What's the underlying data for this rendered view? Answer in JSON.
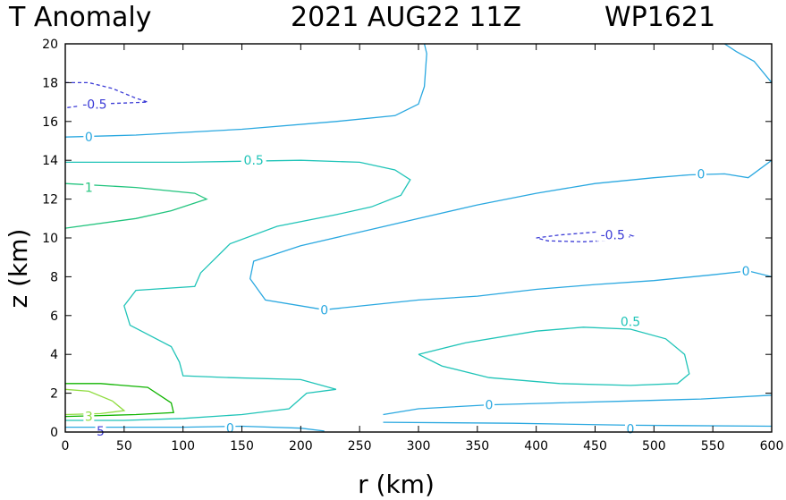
{
  "title": {
    "left": "T Anomaly",
    "center": "2021 AUG22 11Z",
    "right": "WP1621"
  },
  "colors": {
    "neg": "#3b3bd6",
    "zero": "#2aa8e0",
    "half": "#20c4b8",
    "one": "#22c47e",
    "two": "#10b400",
    "three": "#90dc40"
  },
  "chart_data": {
    "type": "contour",
    "title": "T Anomaly  2021 AUG22 11Z  WP1621",
    "xlabel": "r (km)",
    "ylabel": "z (km)",
    "xlim": [
      0,
      600
    ],
    "ylim": [
      0,
      20
    ],
    "xticks": [
      0,
      50,
      100,
      150,
      200,
      250,
      300,
      350,
      400,
      450,
      500,
      550,
      600
    ],
    "yticks": [
      0,
      2,
      4,
      6,
      8,
      10,
      12,
      14,
      16,
      18,
      20
    ],
    "contours": [
      {
        "level": -0.5,
        "color": "neg",
        "dashed": true,
        "points": [
          [
            0,
            18.0
          ],
          [
            20,
            18.0
          ],
          [
            40,
            17.7
          ],
          [
            60,
            17.2
          ],
          [
            70,
            17.0
          ],
          [
            50,
            16.95
          ],
          [
            25,
            16.9
          ],
          [
            0,
            16.7
          ]
        ]
      },
      {
        "level": 0,
        "color": "zero",
        "dashed": false,
        "points": [
          [
            0,
            15.2
          ],
          [
            60,
            15.3
          ],
          [
            150,
            15.6
          ],
          [
            230,
            16.0
          ],
          [
            280,
            16.3
          ],
          [
            300,
            16.9
          ],
          [
            305,
            17.8
          ],
          [
            307,
            19.5
          ],
          [
            305,
            20.0
          ]
        ]
      },
      {
        "level": 0.5,
        "color": "half",
        "dashed": false,
        "points": [
          [
            0,
            13.9
          ],
          [
            100,
            13.9
          ],
          [
            200,
            14.0
          ],
          [
            250,
            13.9
          ],
          [
            280,
            13.5
          ],
          [
            293,
            13.0
          ],
          [
            285,
            12.2
          ],
          [
            260,
            11.6
          ],
          [
            230,
            11.2
          ],
          [
            180,
            10.6
          ],
          [
            140,
            9.7
          ],
          [
            115,
            8.2
          ],
          [
            110,
            7.5
          ],
          [
            60,
            7.3
          ],
          [
            50,
            6.5
          ],
          [
            55,
            5.5
          ],
          [
            90,
            4.4
          ],
          [
            97,
            3.6
          ],
          [
            100,
            2.9
          ],
          [
            140,
            2.8
          ],
          [
            200,
            2.7
          ],
          [
            230,
            2.2
          ],
          [
            205,
            2.0
          ],
          [
            190,
            1.2
          ],
          [
            150,
            0.9
          ],
          [
            100,
            0.7
          ],
          [
            50,
            0.6
          ],
          [
            0,
            0.6
          ]
        ]
      },
      {
        "level": 1,
        "color": "one",
        "dashed": false,
        "points": [
          [
            0,
            12.8
          ],
          [
            60,
            12.6
          ],
          [
            110,
            12.3
          ],
          [
            120,
            12.0
          ],
          [
            90,
            11.4
          ],
          [
            60,
            11.0
          ],
          [
            0,
            10.5
          ]
        ]
      },
      {
        "level": -0.5,
        "color": "neg",
        "dashed": true,
        "points": [
          [
            400,
            10.0
          ],
          [
            420,
            10.15
          ],
          [
            450,
            10.3
          ],
          [
            475,
            10.25
          ],
          [
            482,
            10.1
          ],
          [
            470,
            9.9
          ],
          [
            440,
            9.8
          ],
          [
            410,
            9.85
          ],
          [
            400,
            10.0
          ]
        ]
      },
      {
        "level": 0,
        "color": "zero",
        "dashed": false,
        "points": [
          [
            220,
            6.3
          ],
          [
            300,
            6.8
          ],
          [
            350,
            7.0
          ],
          [
            400,
            7.35
          ],
          [
            450,
            7.6
          ],
          [
            500,
            7.8
          ],
          [
            550,
            8.1
          ],
          [
            580,
            8.3
          ],
          [
            600,
            8.0
          ]
        ]
      },
      {
        "level": 0,
        "color": "zero",
        "dashed": false,
        "points": [
          [
            220,
            6.3
          ],
          [
            170,
            6.8
          ],
          [
            157,
            7.9
          ],
          [
            160,
            8.8
          ],
          [
            200,
            9.6
          ],
          [
            250,
            10.3
          ],
          [
            300,
            11.0
          ],
          [
            350,
            11.7
          ],
          [
            400,
            12.3
          ],
          [
            450,
            12.8
          ],
          [
            500,
            13.1
          ],
          [
            530,
            13.25
          ],
          [
            560,
            13.3
          ],
          [
            580,
            13.1
          ],
          [
            600,
            14.0
          ]
        ]
      },
      {
        "level": 0,
        "color": "zero",
        "dashed": false,
        "points": [
          [
            560,
            20.0
          ],
          [
            570,
            19.6
          ],
          [
            585,
            19.1
          ],
          [
            600,
            18.0
          ]
        ]
      },
      {
        "level": 0.5,
        "color": "half",
        "dashed": false,
        "points": [
          [
            300,
            4.0
          ],
          [
            320,
            3.4
          ],
          [
            360,
            2.8
          ],
          [
            420,
            2.5
          ],
          [
            480,
            2.4
          ],
          [
            520,
            2.5
          ],
          [
            530,
            3.0
          ],
          [
            526,
            4.0
          ],
          [
            510,
            4.8
          ],
          [
            480,
            5.3
          ],
          [
            440,
            5.4
          ],
          [
            400,
            5.2
          ],
          [
            340,
            4.6
          ],
          [
            300,
            4.0
          ]
        ]
      },
      {
        "level": 0,
        "color": "zero",
        "dashed": false,
        "points": [
          [
            270,
            0.9
          ],
          [
            300,
            1.2
          ],
          [
            360,
            1.4
          ],
          [
            420,
            1.5
          ],
          [
            480,
            1.6
          ],
          [
            540,
            1.7
          ],
          [
            600,
            1.9
          ]
        ]
      },
      {
        "level": 0,
        "color": "zero",
        "dashed": false,
        "points": [
          [
            0,
            0.25
          ],
          [
            100,
            0.25
          ],
          [
            150,
            0.3
          ],
          [
            200,
            0.2
          ],
          [
            220,
            0.05
          ]
        ]
      },
      {
        "level": 0,
        "color": "zero",
        "dashed": false,
        "points": [
          [
            270,
            0.5
          ],
          [
            380,
            0.45
          ],
          [
            480,
            0.35
          ],
          [
            600,
            0.3
          ]
        ]
      },
      {
        "level": 2,
        "color": "two",
        "dashed": false,
        "points": [
          [
            0,
            2.5
          ],
          [
            30,
            2.5
          ],
          [
            70,
            2.3
          ],
          [
            90,
            1.5
          ],
          [
            92,
            1.0
          ],
          [
            60,
            0.9
          ],
          [
            30,
            0.85
          ],
          [
            0,
            0.8
          ]
        ]
      },
      {
        "level": 3,
        "color": "three",
        "dashed": false,
        "points": [
          [
            0,
            2.2
          ],
          [
            20,
            2.1
          ],
          [
            40,
            1.6
          ],
          [
            50,
            1.1
          ],
          [
            30,
            0.95
          ],
          [
            0,
            0.9
          ]
        ]
      }
    ],
    "labels": [
      {
        "text": "-0.5",
        "x": 25,
        "y": 16.9,
        "color": "neg"
      },
      {
        "text": "0",
        "x": 20,
        "y": 15.2,
        "color": "zero"
      },
      {
        "text": "0.5",
        "x": 160,
        "y": 14.0,
        "color": "half"
      },
      {
        "text": "1",
        "x": 20,
        "y": 12.6,
        "color": "one"
      },
      {
        "text": "-0.5",
        "x": 465,
        "y": 10.15,
        "color": "neg"
      },
      {
        "text": "0",
        "x": 540,
        "y": 13.3,
        "color": "zero"
      },
      {
        "text": "0",
        "x": 578,
        "y": 8.3,
        "color": "zero"
      },
      {
        "text": "0",
        "x": 220,
        "y": 6.3,
        "color": "zero"
      },
      {
        "text": "0.5",
        "x": 480,
        "y": 5.7,
        "color": "half"
      },
      {
        "text": "0",
        "x": 360,
        "y": 1.4,
        "color": "zero"
      },
      {
        "text": "0",
        "x": 140,
        "y": 0.2,
        "color": "zero"
      },
      {
        "text": "0",
        "x": 480,
        "y": 0.15,
        "color": "zero"
      },
      {
        "text": "3",
        "x": 20,
        "y": 0.8,
        "color": "three"
      },
      {
        "text": "5",
        "x": 30,
        "y": 0.05,
        "color": "neg"
      }
    ]
  }
}
